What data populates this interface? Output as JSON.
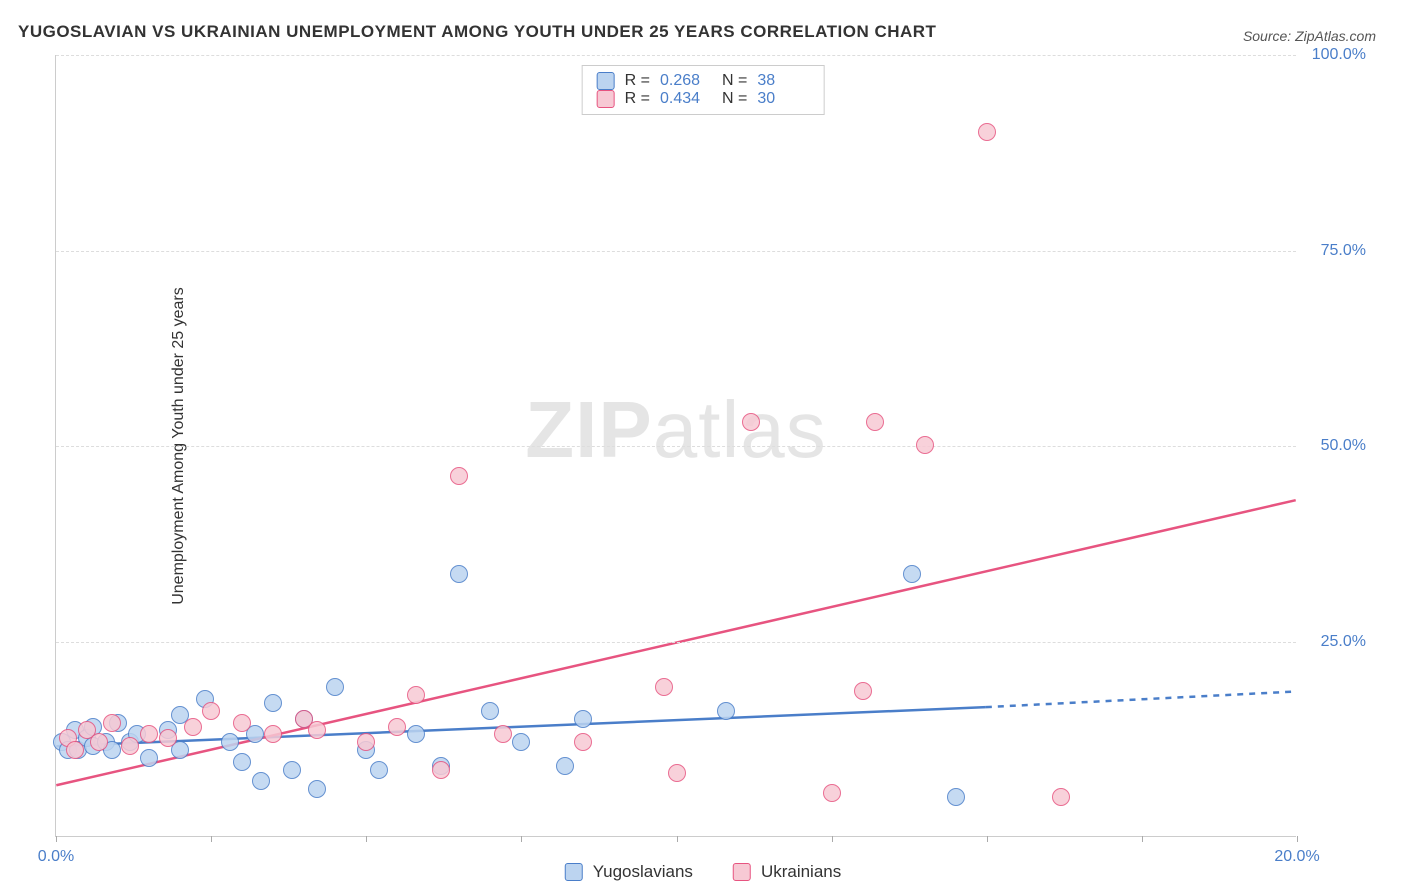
{
  "title": "YUGOSLAVIAN VS UKRAINIAN UNEMPLOYMENT AMONG YOUTH UNDER 25 YEARS CORRELATION CHART",
  "source": "Source: ZipAtlas.com",
  "ylabel": "Unemployment Among Youth under 25 years",
  "watermark_a": "ZIP",
  "watermark_b": "atlas",
  "chart": {
    "type": "scatter",
    "xlim": [
      0,
      20
    ],
    "ylim": [
      0,
      100
    ],
    "xtick_step": 2.5,
    "ytick_step": 25,
    "xtick_labels": {
      "0": "0.0%",
      "20": "20.0%"
    },
    "ytick_labels": {
      "25": "25.0%",
      "50": "50.0%",
      "75": "75.0%",
      "100": "100.0%"
    },
    "background_color": "#ffffff",
    "grid_color": "#dddddd",
    "axis_color": "#cccccc",
    "label_color": "#4a7ec9",
    "point_radius": 9,
    "point_stroke_width": 1.5,
    "trend_line_width": 2.5,
    "series": [
      {
        "name": "Yugoslavians",
        "fill": "#bcd4f0",
        "stroke": "#4a7ec9",
        "r": 0.268,
        "n": 38,
        "trend": {
          "x1": 0,
          "y1": 11.5,
          "x2": 15,
          "y2": 16.5,
          "dash_to_x": 20,
          "dash_to_y": 18.5
        },
        "points": [
          [
            0.1,
            12.0
          ],
          [
            0.2,
            11.0
          ],
          [
            0.3,
            13.5
          ],
          [
            0.35,
            11.0
          ],
          [
            0.5,
            12.5
          ],
          [
            0.6,
            14.0
          ],
          [
            0.6,
            11.5
          ],
          [
            0.8,
            12.0
          ],
          [
            0.9,
            11.0
          ],
          [
            1.0,
            14.5
          ],
          [
            1.2,
            12.0
          ],
          [
            1.3,
            13.0
          ],
          [
            1.5,
            10.0
          ],
          [
            1.8,
            13.5
          ],
          [
            2.0,
            11.0
          ],
          [
            2.0,
            15.5
          ],
          [
            2.4,
            17.5
          ],
          [
            2.8,
            12.0
          ],
          [
            3.0,
            9.5
          ],
          [
            3.2,
            13.0
          ],
          [
            3.3,
            7.0
          ],
          [
            3.5,
            17.0
          ],
          [
            3.8,
            8.5
          ],
          [
            4.0,
            15.0
          ],
          [
            4.2,
            6.0
          ],
          [
            4.5,
            19.0
          ],
          [
            5.0,
            11.0
          ],
          [
            5.2,
            8.5
          ],
          [
            5.8,
            13.0
          ],
          [
            6.2,
            9.0
          ],
          [
            6.5,
            33.5
          ],
          [
            7.0,
            16.0
          ],
          [
            7.5,
            12.0
          ],
          [
            8.2,
            9.0
          ],
          [
            8.5,
            15.0
          ],
          [
            10.8,
            16.0
          ],
          [
            13.8,
            33.5
          ],
          [
            14.5,
            5.0
          ]
        ]
      },
      {
        "name": "Ukrainians",
        "fill": "#f7c9d4",
        "stroke": "#e75480",
        "r": 0.434,
        "n": 30,
        "trend": {
          "x1": 0,
          "y1": 6.5,
          "x2": 20,
          "y2": 43.0
        },
        "points": [
          [
            0.2,
            12.5
          ],
          [
            0.3,
            11.0
          ],
          [
            0.5,
            13.5
          ],
          [
            0.7,
            12.0
          ],
          [
            0.9,
            14.5
          ],
          [
            1.2,
            11.5
          ],
          [
            1.5,
            13.0
          ],
          [
            1.8,
            12.5
          ],
          [
            2.2,
            14.0
          ],
          [
            2.5,
            16.0
          ],
          [
            3.0,
            14.5
          ],
          [
            3.5,
            13.0
          ],
          [
            4.0,
            15.0
          ],
          [
            4.2,
            13.5
          ],
          [
            5.0,
            12.0
          ],
          [
            5.5,
            14.0
          ],
          [
            5.8,
            18.0
          ],
          [
            6.2,
            8.5
          ],
          [
            6.5,
            46.0
          ],
          [
            7.2,
            13.0
          ],
          [
            8.5,
            12.0
          ],
          [
            9.8,
            19.0
          ],
          [
            10.0,
            8.0
          ],
          [
            11.2,
            53.0
          ],
          [
            12.5,
            5.5
          ],
          [
            13.0,
            18.5
          ],
          [
            13.2,
            53.0
          ],
          [
            14.0,
            50.0
          ],
          [
            15.0,
            90.0
          ],
          [
            16.2,
            5.0
          ]
        ]
      }
    ]
  },
  "stats_legend": {
    "r_label": "R =",
    "n_label": "N ="
  },
  "bottom_legend": [
    "Yugoslavians",
    "Ukrainians"
  ]
}
